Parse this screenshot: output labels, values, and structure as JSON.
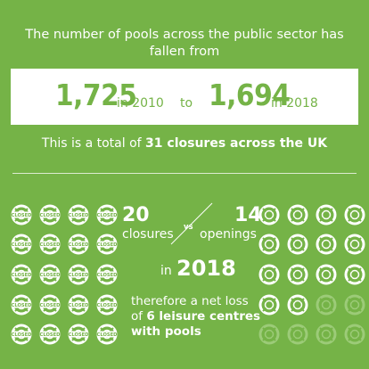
{
  "headline": {
    "line1": "The number of pools across the public sector has",
    "line2": "fallen from"
  },
  "comparison": {
    "from_value": "1,725",
    "from_year": "in 2010",
    "connector": "to",
    "to_value": "1,694",
    "to_year": "in 2018"
  },
  "total": {
    "prefix": "This is a total of",
    "highlight": "31 closures across the UK"
  },
  "stats": {
    "closures_count": "20",
    "closures_label": "closures",
    "vs_label": "vs",
    "openings_count": "14",
    "openings_label": "openings",
    "in_label": "in",
    "year": "2018"
  },
  "conclusion": {
    "line1": "therefore a net loss",
    "line2_prefix": "of",
    "line2_bold": "6 leisure centres",
    "line3_bold": "with pools"
  },
  "icons": {
    "closed_text": "CLOSED",
    "closed_count": 20,
    "opening_count": 14,
    "faded_count": 6
  },
  "colors": {
    "background": "#75b347",
    "white": "#ffffff",
    "faded": "#9ccb78"
  }
}
